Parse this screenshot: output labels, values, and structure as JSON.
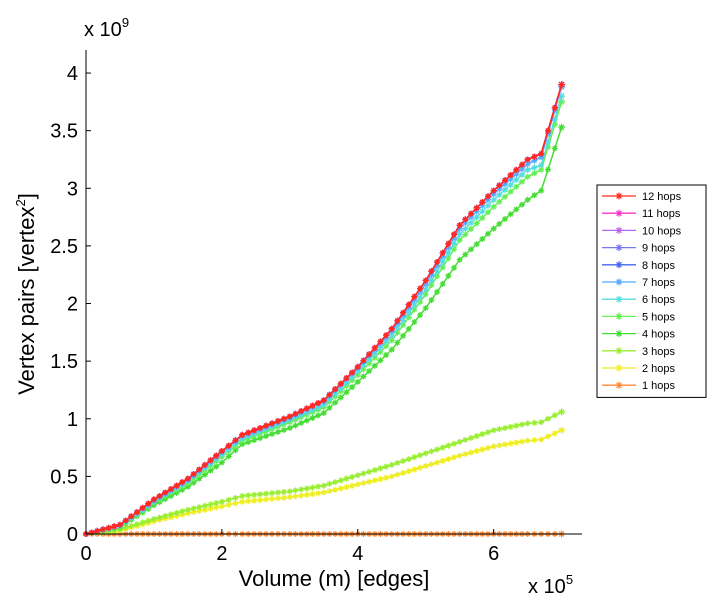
{
  "chart_data": {
    "type": "line",
    "xlabel": "Volume (m) [edges]",
    "ylabel": "Vertex pairs [vertex",
    "ylabel_sup": "2",
    "ylabel_end": "]",
    "x_multiplier": "x 10",
    "x_multiplier_exp": "5",
    "y_multiplier": "x 10",
    "y_multiplier_exp": "9",
    "xlim": [
      0,
      7.3
    ],
    "ylim": [
      0,
      4.2
    ],
    "x_ticks": [
      0,
      2,
      4,
      6
    ],
    "x_tick_labels": [
      "0",
      "2",
      "4",
      "6"
    ],
    "y_ticks": [
      0,
      0.5,
      1,
      1.5,
      2,
      2.5,
      3,
      3.5,
      4
    ],
    "y_tick_labels": [
      "0",
      "0.5",
      "1",
      "1.5",
      "2",
      "2.5",
      "3",
      "3.5",
      "4"
    ],
    "legend_position": "right",
    "x": [
      0,
      0.5,
      1,
      1.5,
      2,
      2.3,
      3,
      3.5,
      4,
      4.5,
      5,
      5.5,
      6,
      6.5,
      6.7,
      7
    ],
    "series": [
      {
        "name": "12 hops",
        "color": "#ff2a1a",
        "values": [
          0,
          0.08,
          0.3,
          0.48,
          0.72,
          0.86,
          1.02,
          1.16,
          1.45,
          1.78,
          2.2,
          2.68,
          2.98,
          3.25,
          3.3,
          3.9
        ]
      },
      {
        "name": "11 hops",
        "color": "#ff33cc",
        "values": [
          0,
          0.08,
          0.3,
          0.48,
          0.72,
          0.86,
          1.02,
          1.16,
          1.45,
          1.78,
          2.2,
          2.68,
          2.98,
          3.25,
          3.3,
          3.9
        ]
      },
      {
        "name": "10 hops",
        "color": "#bb66ee",
        "values": [
          0,
          0.08,
          0.3,
          0.48,
          0.72,
          0.86,
          1.02,
          1.16,
          1.45,
          1.78,
          2.2,
          2.68,
          2.98,
          3.25,
          3.3,
          3.9
        ]
      },
      {
        "name": "9 hops",
        "color": "#7777ee",
        "values": [
          0,
          0.08,
          0.3,
          0.48,
          0.72,
          0.86,
          1.02,
          1.16,
          1.45,
          1.78,
          2.2,
          2.68,
          2.98,
          3.25,
          3.3,
          3.9
        ]
      },
      {
        "name": "8 hops",
        "color": "#4466ee",
        "values": [
          0,
          0.08,
          0.3,
          0.48,
          0.72,
          0.86,
          1.02,
          1.16,
          1.45,
          1.78,
          2.2,
          2.68,
          2.98,
          3.25,
          3.3,
          3.9
        ]
      },
      {
        "name": "7 hops",
        "color": "#55aaff",
        "values": [
          0,
          0.08,
          0.29,
          0.47,
          0.71,
          0.85,
          1.01,
          1.15,
          1.44,
          1.76,
          2.17,
          2.65,
          2.95,
          3.21,
          3.27,
          3.88
        ]
      },
      {
        "name": "6 hops",
        "color": "#55dddd",
        "values": [
          0,
          0.07,
          0.28,
          0.46,
          0.69,
          0.83,
          0.99,
          1.12,
          1.41,
          1.72,
          2.12,
          2.6,
          2.9,
          3.16,
          3.2,
          3.8
        ]
      },
      {
        "name": "5 hops",
        "color": "#66ee55",
        "values": [
          0,
          0.07,
          0.27,
          0.44,
          0.67,
          0.81,
          0.97,
          1.1,
          1.38,
          1.68,
          2.08,
          2.55,
          2.84,
          3.1,
          3.16,
          3.75
        ]
      },
      {
        "name": "4 hops",
        "color": "#44dd33",
        "values": [
          0,
          0.06,
          0.25,
          0.41,
          0.62,
          0.78,
          0.92,
          1.05,
          1.32,
          1.6,
          1.96,
          2.38,
          2.65,
          2.9,
          2.98,
          3.53
        ]
      },
      {
        "name": "3 hops",
        "color": "#99ee33",
        "values": [
          0,
          0.04,
          0.13,
          0.21,
          0.28,
          0.33,
          0.37,
          0.42,
          0.51,
          0.6,
          0.7,
          0.8,
          0.9,
          0.96,
          0.97,
          1.06
        ]
      },
      {
        "name": "2 hops",
        "color": "#eeee22",
        "values": [
          0,
          0.03,
          0.11,
          0.18,
          0.24,
          0.28,
          0.32,
          0.36,
          0.43,
          0.5,
          0.59,
          0.68,
          0.76,
          0.81,
          0.82,
          0.9
        ]
      },
      {
        "name": "1 hops",
        "color": "#ff8833",
        "values": [
          0,
          0,
          0,
          0,
          0,
          0,
          0,
          0,
          0,
          0,
          0,
          0,
          0,
          0,
          0,
          0
        ]
      }
    ]
  }
}
